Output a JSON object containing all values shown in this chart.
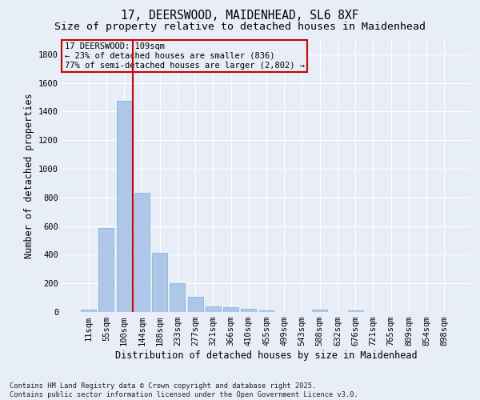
{
  "title_line1": "17, DEERSWOOD, MAIDENHEAD, SL6 8XF",
  "title_line2": "Size of property relative to detached houses in Maidenhead",
  "xlabel": "Distribution of detached houses by size in Maidenhead",
  "ylabel": "Number of detached properties",
  "footnote": "Contains HM Land Registry data © Crown copyright and database right 2025.\nContains public sector information licensed under the Open Government Licence v3.0.",
  "categories": [
    "11sqm",
    "55sqm",
    "100sqm",
    "144sqm",
    "188sqm",
    "233sqm",
    "277sqm",
    "321sqm",
    "366sqm",
    "410sqm",
    "455sqm",
    "499sqm",
    "543sqm",
    "588sqm",
    "632sqm",
    "676sqm",
    "721sqm",
    "765sqm",
    "809sqm",
    "854sqm",
    "898sqm"
  ],
  "values": [
    15,
    585,
    1475,
    830,
    415,
    200,
    105,
    40,
    35,
    25,
    10,
    0,
    0,
    15,
    0,
    12,
    0,
    0,
    0,
    0,
    0
  ],
  "bar_color": "#aec6e8",
  "bar_edge_color": "#7aaed4",
  "vline_color": "#cc0000",
  "vline_x_index": 2.5,
  "annotation_text": "17 DEERSWOOD: 109sqm\n← 23% of detached houses are smaller (836)\n77% of semi-detached houses are larger (2,802) →",
  "annotation_box_color": "#cc0000",
  "ylim": [
    0,
    1900
  ],
  "yticks": [
    0,
    200,
    400,
    600,
    800,
    1000,
    1200,
    1400,
    1600,
    1800
  ],
  "background_color": "#e8eef8",
  "grid_color": "#ffffff",
  "title_fontsize": 10.5,
  "subtitle_fontsize": 9.5,
  "axis_label_fontsize": 8.5,
  "tick_fontsize": 7.5,
  "annotation_fontsize": 7.5
}
